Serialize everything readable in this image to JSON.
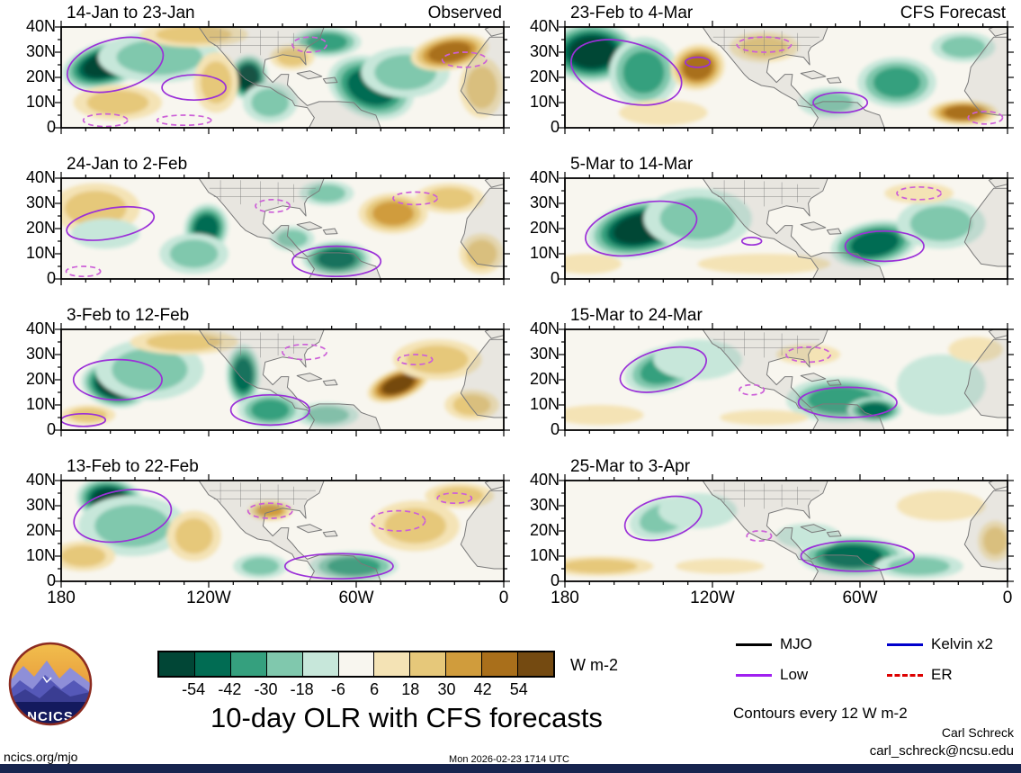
{
  "header": {
    "observed_label": "Observed",
    "forecast_label": "CFS Forecast"
  },
  "axes": {
    "y_ticks": [
      "40N",
      "30N",
      "20N",
      "10N",
      "0"
    ],
    "x_ticks": [
      "180",
      "120W",
      "60W",
      "0"
    ]
  },
  "colorbar": {
    "ticks": [
      "-54",
      "-42",
      "-30",
      "-18",
      "-6",
      "6",
      "18",
      "30",
      "42",
      "54"
    ],
    "colors": [
      "#014636",
      "#016c53",
      "#35a07e",
      "#80c8ad",
      "#c7e7da",
      "#f8f6ef",
      "#f4e3b5",
      "#e6c87a",
      "#d09c3c",
      "#a96f1b",
      "#744a11"
    ],
    "units": "W m-2"
  },
  "legend": {
    "items": [
      {
        "label": "MJO",
        "color": "#000000",
        "dashed": false
      },
      {
        "label": "Low",
        "color": "#a020f0",
        "dashed": false
      },
      {
        "label": "Kelvin x2",
        "color": "#0000cc",
        "dashed": false
      },
      {
        "label": "ER",
        "color": "#dd0000",
        "dashed": true
      }
    ]
  },
  "footer": {
    "title": "10-day OLR with CFS forecasts",
    "contour_note": "Contours every 12 W m-2",
    "credit_name": "Carl Schreck",
    "credit_email": "carl_schreck@ncsu.edu",
    "site": "ncics.org/mjo",
    "timestamp": "Mon 2026-02-23 1714 UTC",
    "logo_text": "NCICS"
  },
  "chart_data": {
    "type": "heatmap",
    "subtype": "filled-contour-anomaly-map-grid",
    "lon_range": [
      -180,
      0
    ],
    "lat_range": [
      0,
      40
    ],
    "contour_interval_wm2": 12,
    "units": "W m-2",
    "colorbar_levels": [
      -54,
      -42,
      -30,
      -18,
      -6,
      6,
      18,
      30,
      42,
      54
    ],
    "contour_colors": {
      "solid": "#9b30d8",
      "dashed": "#cc5fd8"
    },
    "map_colors": {
      "coast": "#7a7a7a",
      "land_fill": "#969696"
    },
    "feature_format": "anomalies: [lon_deg_east, lat_deg_north, rx_deg, ry_deg, level (x12 W m-2; negative=teal enhanced convection, positive=tan suppressed), rotation_deg]; contours: [lon_deg_east, lat_deg_north, rx_deg, ry_deg, rotation_deg, dashed_flag]",
    "panels": [
      {
        "label": "14-Jan to 23-Jan",
        "kind": "observed",
        "anomalies": [
          [
            -162,
            25,
            18,
            9,
            -5,
            -15
          ],
          [
            -140,
            28,
            25,
            10,
            -2,
            0
          ],
          [
            -104,
            20,
            8,
            9,
            -5,
            10
          ],
          [
            -95,
            10,
            11,
            8,
            -2,
            0
          ],
          [
            -54,
            16,
            18,
            12,
            -4,
            20
          ],
          [
            -40,
            22,
            18,
            10,
            -2,
            0
          ],
          [
            -72,
            34,
            14,
            6,
            -3,
            0
          ],
          [
            -22,
            30,
            16,
            7,
            4,
            -10
          ],
          [
            -9,
            16,
            9,
            12,
            2,
            0
          ],
          [
            -126,
            37,
            22,
            5,
            2,
            0
          ],
          [
            -157,
            10,
            18,
            7,
            2,
            0
          ],
          [
            -117,
            18,
            9,
            12,
            2,
            0
          ],
          [
            -86,
            28,
            9,
            5,
            2,
            0
          ]
        ],
        "contours": [
          [
            -158,
            25,
            20,
            10,
            -15,
            0
          ],
          [
            -126,
            16,
            13,
            5,
            0,
            0
          ],
          [
            -79,
            33,
            7,
            3,
            0,
            1
          ],
          [
            -162,
            3,
            9,
            2.5,
            0,
            1
          ],
          [
            -130,
            3,
            11,
            2,
            0,
            1
          ],
          [
            -16,
            27,
            9,
            3,
            0,
            1
          ]
        ]
      },
      {
        "label": "24-Jan to 2-Feb",
        "kind": "observed",
        "anomalies": [
          [
            -166,
            28,
            18,
            10,
            2,
            0
          ],
          [
            -162,
            18,
            14,
            6,
            -1,
            0
          ],
          [
            -121,
            20,
            9,
            10,
            -4,
            15
          ],
          [
            -126,
            10,
            14,
            8,
            -2,
            0
          ],
          [
            -68,
            8,
            14,
            7,
            -4,
            0
          ],
          [
            -86,
            16,
            9,
            5,
            -2,
            0
          ],
          [
            -45,
            26,
            14,
            8,
            3,
            0
          ],
          [
            -22,
            32,
            14,
            6,
            2,
            0
          ],
          [
            -72,
            34,
            11,
            5,
            -2,
            0
          ],
          [
            -9,
            10,
            9,
            8,
            2,
            0
          ]
        ],
        "contours": [
          [
            -160,
            22,
            18,
            6,
            -10,
            0
          ],
          [
            -68,
            7,
            18,
            6,
            0,
            0
          ],
          [
            -36,
            32,
            9,
            2.5,
            0,
            1
          ],
          [
            -94,
            29,
            7,
            2.5,
            0,
            1
          ],
          [
            -171,
            3,
            7,
            2,
            0,
            1
          ]
        ]
      },
      {
        "label": "3-Feb to 12-Feb",
        "kind": "observed",
        "anomalies": [
          [
            -158,
            18,
            14,
            9,
            -5,
            10
          ],
          [
            -144,
            24,
            22,
            12,
            -2,
            0
          ],
          [
            -106,
            22,
            7,
            12,
            -4,
            0
          ],
          [
            -95,
            8,
            13,
            7,
            -3,
            0
          ],
          [
            -72,
            6,
            13,
            5,
            -2,
            0
          ],
          [
            -43,
            18,
            13,
            6,
            5,
            -20
          ],
          [
            -27,
            28,
            18,
            8,
            2,
            0
          ],
          [
            -130,
            35,
            22,
            5,
            2,
            0
          ],
          [
            -169,
            6,
            11,
            4,
            2,
            0
          ],
          [
            -13,
            10,
            11,
            6,
            2,
            0
          ]
        ],
        "contours": [
          [
            -157,
            20,
            18,
            8,
            0,
            0
          ],
          [
            -95,
            8,
            16,
            6,
            0,
            0
          ],
          [
            -171,
            4,
            9,
            2.5,
            0,
            0
          ],
          [
            -81,
            31,
            9,
            3,
            0,
            1
          ],
          [
            -36,
            28,
            7,
            2,
            0,
            1
          ]
        ]
      },
      {
        "label": "13-Feb to 22-Feb",
        "kind": "observed",
        "anomalies": [
          [
            -160,
            32,
            14,
            9,
            -5,
            10
          ],
          [
            -151,
            22,
            22,
            12,
            -2,
            0
          ],
          [
            -61,
            6,
            18,
            6,
            -3,
            0
          ],
          [
            -99,
            6,
            11,
            5,
            -2,
            0
          ],
          [
            -171,
            10,
            13,
            6,
            2,
            0
          ],
          [
            -126,
            18,
            11,
            10,
            2,
            0
          ],
          [
            -95,
            28,
            9,
            4,
            3,
            0
          ],
          [
            -36,
            22,
            18,
            10,
            2,
            0
          ],
          [
            -18,
            34,
            14,
            5,
            2,
            0
          ]
        ],
        "contours": [
          [
            -155,
            26,
            20,
            10,
            -10,
            0
          ],
          [
            -67,
            6,
            22,
            5,
            0,
            0
          ],
          [
            -95,
            28,
            9,
            3,
            0,
            1
          ],
          [
            -43,
            24,
            11,
            4,
            0,
            1
          ],
          [
            -20,
            33,
            7,
            2,
            0,
            1
          ]
        ]
      },
      {
        "label": "23-Feb to 4-Mar",
        "kind": "forecast",
        "anomalies": [
          [
            -169,
            30,
            18,
            12,
            -5,
            0
          ],
          [
            -148,
            22,
            14,
            14,
            -3,
            10
          ],
          [
            -126,
            24,
            11,
            9,
            4,
            -10
          ],
          [
            -99,
            32,
            14,
            6,
            2,
            0
          ],
          [
            -140,
            6,
            18,
            5,
            1,
            0
          ],
          [
            -72,
            10,
            13,
            6,
            -2,
            0
          ],
          [
            -45,
            18,
            16,
            10,
            -3,
            0
          ],
          [
            -18,
            32,
            13,
            6,
            -2,
            0
          ],
          [
            -18,
            6,
            14,
            5,
            4,
            0
          ]
        ],
        "contours": [
          [
            -155,
            22,
            23,
            12,
            15,
            0
          ],
          [
            -126,
            26,
            5,
            2,
            0,
            0
          ],
          [
            -99,
            33,
            11,
            3,
            0,
            1
          ],
          [
            -68,
            10,
            11,
            4,
            0,
            0
          ],
          [
            -9,
            4,
            7,
            2.5,
            0,
            1
          ]
        ]
      },
      {
        "label": "5-Mar to 14-Mar",
        "kind": "forecast",
        "anomalies": [
          [
            -149,
            20,
            22,
            11,
            -5,
            -12
          ],
          [
            -126,
            24,
            22,
            12,
            -2,
            0
          ],
          [
            -54,
            14,
            18,
            9,
            -4,
            -10
          ],
          [
            -27,
            22,
            18,
            10,
            -2,
            0
          ],
          [
            -171,
            6,
            14,
            4,
            1,
            0
          ],
          [
            -99,
            6,
            27,
            4,
            1,
            0
          ],
          [
            -36,
            34,
            14,
            4,
            1,
            0
          ]
        ],
        "contours": [
          [
            -149,
            20,
            23,
            10,
            -12,
            0
          ],
          [
            -104,
            15,
            4,
            1.5,
            0,
            0
          ],
          [
            -50,
            13,
            16,
            6,
            0,
            0
          ],
          [
            -36,
            34,
            9,
            2.5,
            0,
            1
          ]
        ]
      },
      {
        "label": "15-Mar to 24-Mar",
        "kind": "forecast",
        "anomalies": [
          [
            -140,
            24,
            16,
            9,
            -3,
            -15
          ],
          [
            -126,
            28,
            18,
            8,
            -1,
            0
          ],
          [
            -68,
            12,
            22,
            9,
            -3,
            0
          ],
          [
            -54,
            8,
            11,
            5,
            -4,
            0
          ],
          [
            -27,
            18,
            18,
            12,
            -1,
            0
          ],
          [
            -166,
            6,
            18,
            4,
            1,
            0
          ],
          [
            -99,
            5,
            18,
            3,
            1,
            0
          ],
          [
            -81,
            30,
            13,
            4,
            1,
            0
          ],
          [
            -13,
            32,
            11,
            5,
            1,
            0
          ]
        ],
        "contours": [
          [
            -140,
            24,
            18,
            8,
            -15,
            0
          ],
          [
            -104,
            16,
            5,
            2,
            0,
            1
          ],
          [
            -65,
            11,
            20,
            6,
            0,
            0
          ],
          [
            -81,
            30,
            9,
            3,
            0,
            1
          ]
        ]
      },
      {
        "label": "25-Mar to 3-Apr",
        "kind": "forecast",
        "anomalies": [
          [
            -140,
            25,
            14,
            8,
            -2,
            -15
          ],
          [
            -126,
            28,
            16,
            7,
            -1,
            0
          ],
          [
            -63,
            10,
            22,
            8,
            -4,
            0
          ],
          [
            -36,
            6,
            18,
            5,
            -2,
            0
          ],
          [
            -81,
            18,
            13,
            5,
            -1,
            0
          ],
          [
            -166,
            6,
            22,
            4,
            2,
            0
          ],
          [
            -117,
            6,
            18,
            3,
            1,
            0
          ],
          [
            -27,
            30,
            18,
            6,
            1,
            0
          ],
          [
            -5,
            16,
            7,
            8,
            2,
            0
          ]
        ],
        "contours": [
          [
            -140,
            25,
            16,
            8,
            -15,
            0
          ],
          [
            -61,
            10,
            23,
            6,
            0,
            0
          ],
          [
            -101,
            18,
            5,
            2,
            0,
            1
          ]
        ]
      }
    ]
  }
}
